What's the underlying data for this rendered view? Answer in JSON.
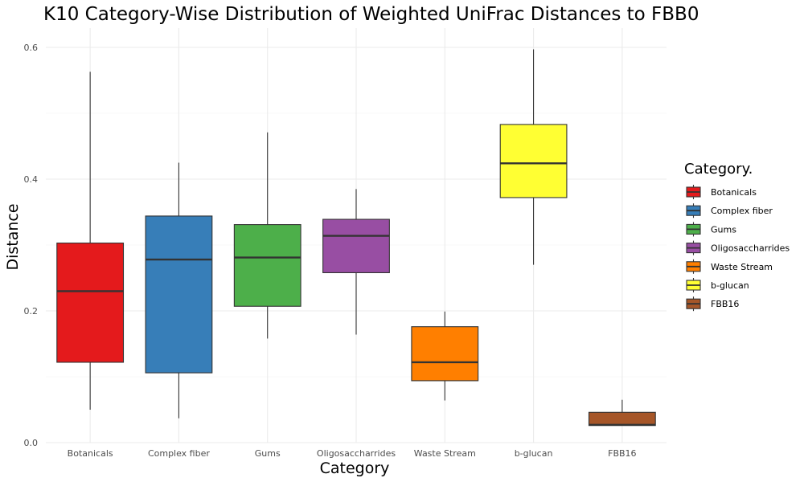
{
  "chart_data": {
    "type": "box",
    "title": "K10 Category-Wise Distribution of Weighted UniFrac Distances to FBB0",
    "xlabel": "Category",
    "ylabel": "Distance",
    "ylim": [
      0,
      0.62
    ],
    "yticks": [
      0.0,
      0.2,
      0.4,
      0.6
    ],
    "ytick_labels": [
      "0.0",
      "0.2",
      "0.4",
      "0.6"
    ],
    "grid": true,
    "legend": {
      "title": "Category.",
      "position": "right"
    },
    "categories": [
      "Botanicals",
      "Complex fiber",
      "Gums",
      "Oligosaccharrides",
      "Waste Stream",
      "b-glucan",
      "FBB16"
    ],
    "series": [
      {
        "name": "Botanicals",
        "min": 0.05,
        "q1": 0.122,
        "median": 0.23,
        "q3": 0.303,
        "max": 0.563,
        "color": "#e41a1c"
      },
      {
        "name": "Complex fiber",
        "min": 0.037,
        "q1": 0.106,
        "median": 0.278,
        "q3": 0.344,
        "max": 0.425,
        "color": "#377eb8"
      },
      {
        "name": "Gums",
        "min": 0.158,
        "q1": 0.207,
        "median": 0.281,
        "q3": 0.331,
        "max": 0.471,
        "color": "#4daf4a"
      },
      {
        "name": "Oligosaccharrides",
        "min": 0.164,
        "q1": 0.258,
        "median": 0.314,
        "q3": 0.339,
        "max": 0.385,
        "color": "#984ea3"
      },
      {
        "name": "Waste Stream",
        "min": 0.064,
        "q1": 0.094,
        "median": 0.122,
        "q3": 0.176,
        "max": 0.199,
        "color": "#ff7f00"
      },
      {
        "name": "b-glucan",
        "min": 0.27,
        "q1": 0.372,
        "median": 0.424,
        "q3": 0.483,
        "max": 0.597,
        "color": "#ffff33"
      },
      {
        "name": "FBB16",
        "min": 0.026,
        "q1": 0.026,
        "median": 0.027,
        "q3": 0.046,
        "max": 0.065,
        "color": "#a65628"
      }
    ]
  }
}
